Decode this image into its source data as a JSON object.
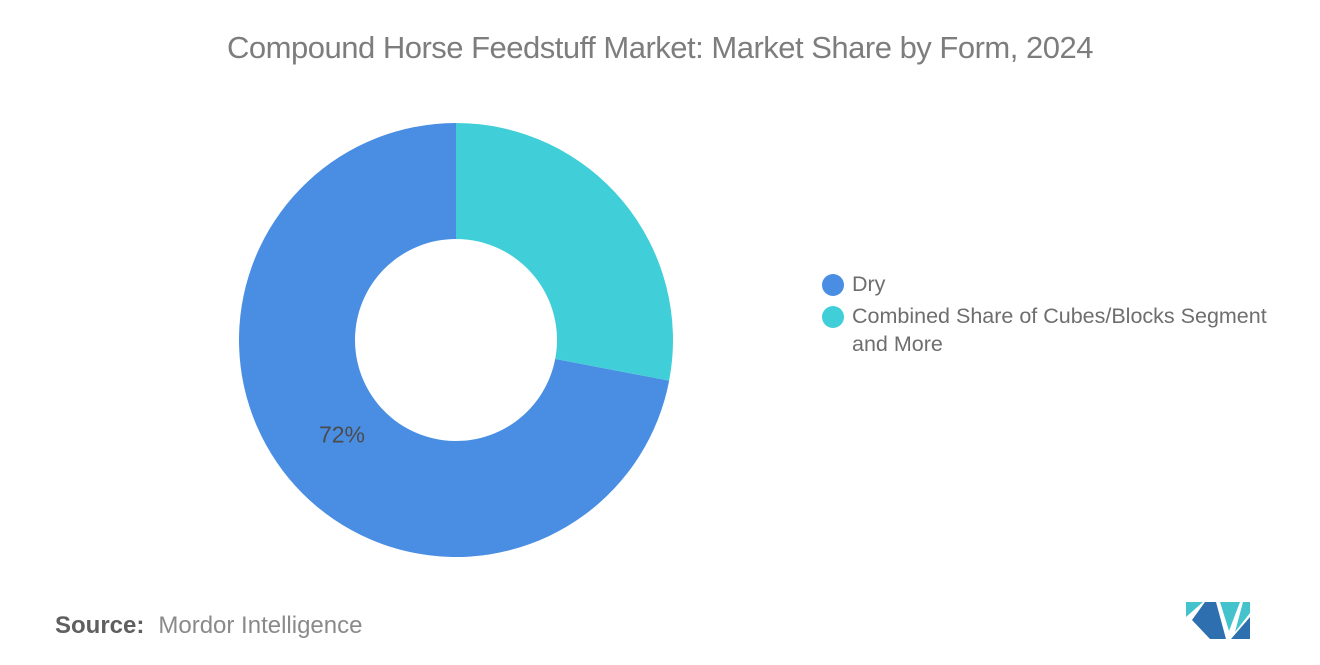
{
  "title": "Compound Horse Feedstuff Market: Market Share by Form, 2024",
  "chart_data": {
    "type": "pie",
    "donut": true,
    "title": "Compound Horse Feedstuff Market: Market Share by Form, 2024",
    "categories": [
      "Dry",
      "Combined Share of Cubes/Blocks Segment and More"
    ],
    "values": [
      72,
      28
    ],
    "unit": "%",
    "colors": [
      "#4A8EE4",
      "#40CFD8"
    ],
    "data_labels": [
      "72%",
      ""
    ],
    "start_angle": "top",
    "direction": "counterclockwise",
    "inner_radius_ratio": 0.465,
    "legend_position": "right",
    "background": "#ffffff"
  },
  "legend": {
    "items": [
      {
        "label": "Dry",
        "color": "#4A8EE4"
      },
      {
        "label": "Combined Share of Cubes/Blocks Segment and More",
        "color": "#40CFD8"
      }
    ]
  },
  "footer": {
    "source_label": "Source:",
    "source_value": "Mordor Intelligence"
  },
  "logo": {
    "name": "Mordor Intelligence",
    "blue": "#2E6FB0",
    "teal": "#44C3CC"
  }
}
